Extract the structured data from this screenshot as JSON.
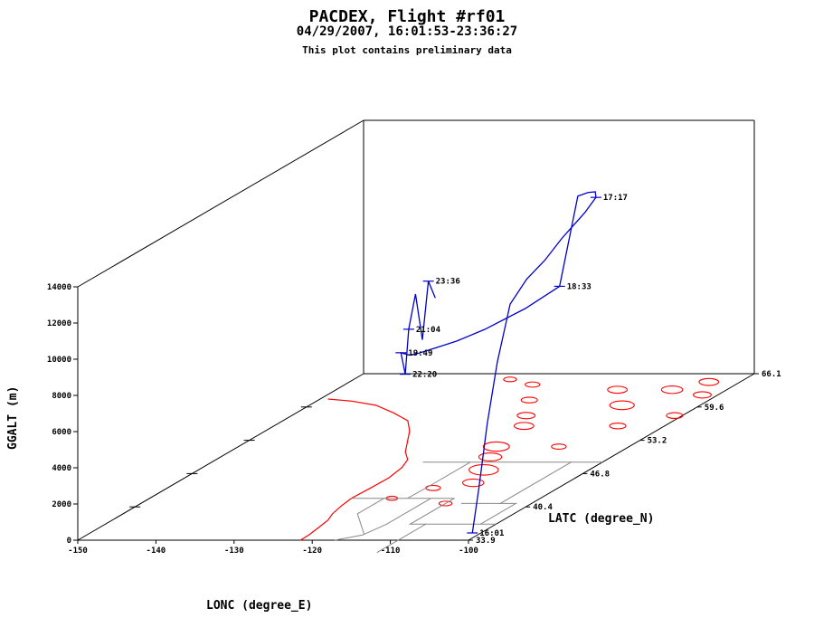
{
  "header": {
    "title": "PACDEX, Flight #rf01",
    "subtitle": "04/29/2007, 16:01:53-23:36:27",
    "note": "This plot contains preliminary data"
  },
  "chart_data": {
    "type": "line",
    "projection": "3d",
    "xlabel": "LONC (degree_E)",
    "ylabel": "LATC (degree_N)",
    "zlabel": "GGALT (m)",
    "xlim": [
      -150,
      -100
    ],
    "ylim": [
      33.9,
      66.1
    ],
    "zlim": [
      0,
      14000
    ],
    "x_ticks": [
      "-150",
      "-140",
      "-130",
      "-120",
      "-110",
      "-100"
    ],
    "y_ticks": [
      "33.9",
      "40.4",
      "46.8",
      "53.2",
      "59.6",
      "66.1"
    ],
    "z_ticks": [
      "0",
      "2000",
      "4000",
      "6000",
      "8000",
      "10000",
      "12000",
      "14000"
    ],
    "colors": {
      "track": "#0000cc",
      "coast": "#ff0000",
      "borders": "#888888",
      "box": "#000000"
    },
    "track": [
      {
        "lon": -100.3,
        "lat": 34.6,
        "alt": 200
      },
      {
        "lon": -100.6,
        "lat": 35.6,
        "alt": 2400
      },
      {
        "lon": -100.9,
        "lat": 36.8,
        "alt": 5600
      },
      {
        "lon": -101.2,
        "lat": 38.2,
        "alt": 8600
      },
      {
        "lon": -101.6,
        "lat": 40.0,
        "alt": 11300
      },
      {
        "lon": -102.2,
        "lat": 42.4,
        "alt": 12000
      },
      {
        "lon": -104.0,
        "lat": 46.0,
        "alt": 12000
      },
      {
        "lon": -106.3,
        "lat": 50.0,
        "alt": 12100
      },
      {
        "lon": -108.6,
        "lat": 54.6,
        "alt": 12200
      },
      {
        "lon": -110.5,
        "lat": 57.5,
        "alt": 12200
      },
      {
        "lon": -111.6,
        "lat": 58.4,
        "alt": 12250
      },
      {
        "lon": -112.2,
        "lat": 58.1,
        "alt": 12300
      },
      {
        "lon": -112.7,
        "lat": 57.4,
        "alt": 12300
      },
      {
        "lon": -113.9,
        "lat": 56.4,
        "alt": 7600
      },
      {
        "lon": -115.8,
        "lat": 54.2,
        "alt": 7000
      },
      {
        "lon": -117.6,
        "lat": 51.2,
        "alt": 6700
      },
      {
        "lon": -118.6,
        "lat": 49.0,
        "alt": 6700
      },
      {
        "lon": -119.4,
        "lat": 47.3,
        "alt": 6800
      },
      {
        "lon": -120.0,
        "lat": 45.9,
        "alt": 6900
      },
      {
        "lon": -120.4,
        "lat": 45.2,
        "alt": 7000
      },
      {
        "lon": -120.8,
        "lat": 44.6,
        "alt": 7300
      },
      {
        "lon": -120.7,
        "lat": 45.0,
        "alt": 6000
      },
      {
        "lon": -120.6,
        "lat": 45.3,
        "alt": 8400
      },
      {
        "lon": -120.3,
        "lat": 45.8,
        "alt": 10200
      },
      {
        "lon": -120.1,
        "lat": 46.4,
        "alt": 7500
      },
      {
        "lon": -119.9,
        "lat": 46.9,
        "alt": 10600
      },
      {
        "lon": -119.7,
        "lat": 47.5,
        "alt": 9500
      }
    ],
    "time_labels": [
      {
        "text": "16:01",
        "lon": -100.3,
        "lat": 34.6,
        "alt": 200
      },
      {
        "text": "17:17",
        "lon": -110.5,
        "lat": 57.5,
        "alt": 12200
      },
      {
        "text": "18:33",
        "lon": -113.9,
        "lat": 56.4,
        "alt": 7600
      },
      {
        "text": "19:49",
        "lon": -120.8,
        "lat": 44.6,
        "alt": 7300
      },
      {
        "text": "21:04",
        "lon": -120.6,
        "lat": 45.3,
        "alt": 8400
      },
      {
        "text": "22:20",
        "lon": -120.7,
        "lat": 45.0,
        "alt": 6000
      },
      {
        "text": "23:36",
        "lon": -119.9,
        "lat": 46.9,
        "alt": 10600
      }
    ]
  }
}
